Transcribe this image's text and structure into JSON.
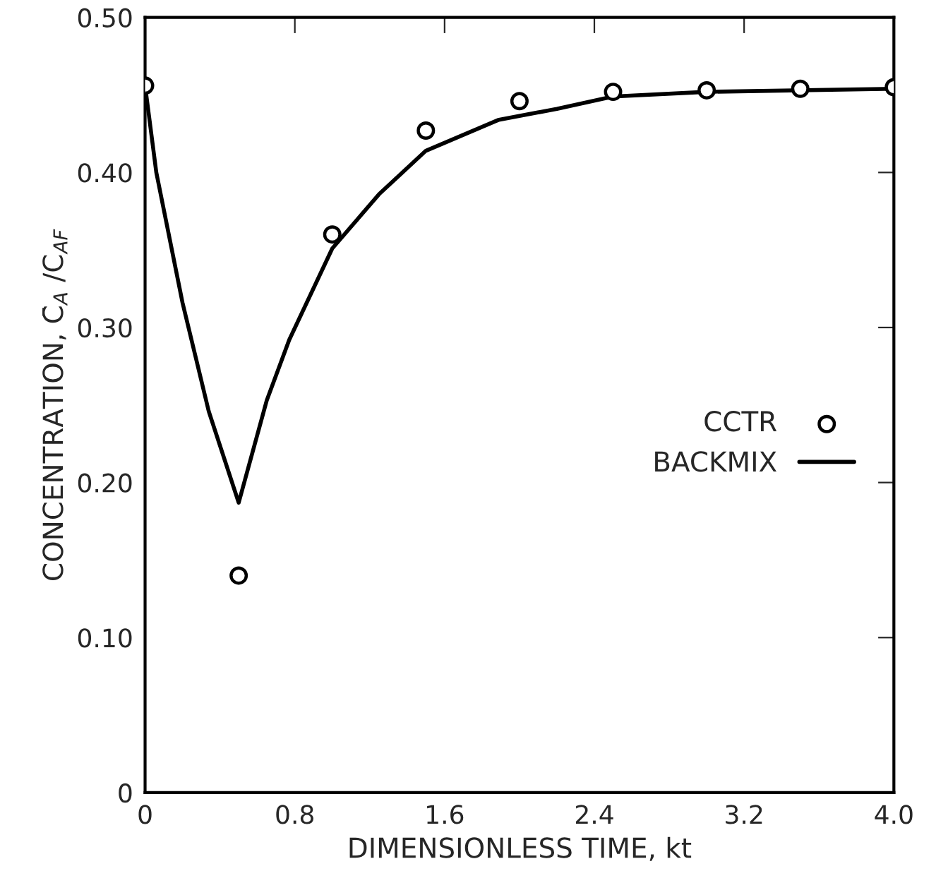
{
  "chart_data": {
    "type": "scatter",
    "xlabel": "DIMENSIONLESS TIME, kt",
    "ylabel": "CONCENTRATION, C̄$_{A}$ /C$_{AF}$",
    "xlim": [
      0,
      4.0
    ],
    "xticks": [
      0,
      0.8,
      1.6,
      2.4,
      {
        "value": 3.2,
        "label": "3.2"
      },
      {
        "value": 4.0,
        "label": "4.0"
      }
    ],
    "ylim": [
      0,
      0.5
    ],
    "yticks": [
      0,
      {
        "value": 0.1,
        "label": "0.10"
      },
      {
        "value": 0.2,
        "label": "0.20"
      },
      {
        "value": 0.3,
        "label": "0.30"
      },
      {
        "value": 0.4,
        "label": "0.40"
      },
      {
        "value": 0.5,
        "label": "0.50"
      }
    ],
    "grid": false,
    "legend": "right",
    "series": [
      {
        "name": "CCTR",
        "marker": "circle",
        "color": "#000000",
        "x": [
          0,
          0.5,
          1.0,
          1.5,
          2.0,
          2.5,
          3.0,
          3.5,
          4.0
        ],
        "values": [
          0.456,
          0.14,
          0.36,
          0.427,
          0.446,
          0.452,
          0.453,
          0.454,
          0.455
        ]
      },
      {
        "name": "BACKMIX",
        "type": "line",
        "marker": "none",
        "line_style": "solid",
        "color": "#000000",
        "x": [
          0,
          0.06,
          0.2,
          0.34,
          0.5,
          0.65,
          0.77,
          1.0,
          1.25,
          1.5,
          1.89,
          2.2,
          2.5,
          3.0,
          4.0
        ],
        "values": [
          0.456,
          0.4,
          0.316,
          0.246,
          0.187,
          0.253,
          0.292,
          0.351,
          0.386,
          0.414,
          0.434,
          0.441,
          0.449,
          0.452,
          0.454
        ]
      }
    ]
  }
}
